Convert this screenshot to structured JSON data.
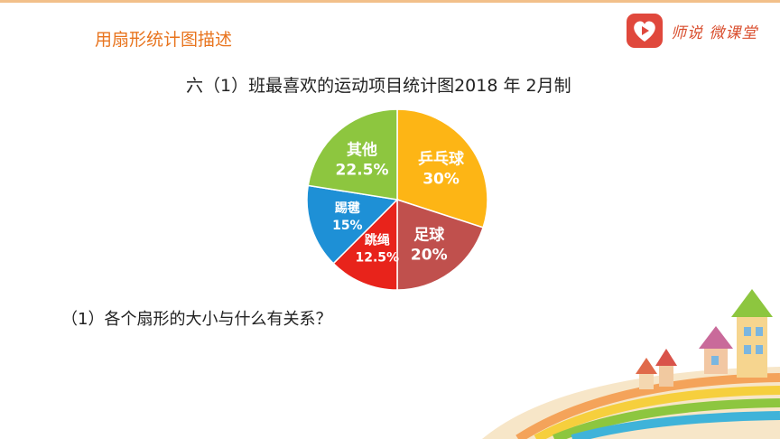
{
  "header": {
    "section_title": "用扇形统计图描述",
    "brand_name": "师说 微课堂",
    "brand_icon": "play-heart-icon"
  },
  "chart_title": "六（1）班最喜欢的运动项目统计图2018 年 2月制",
  "question": "（1）各个扇形的大小与什么有关系？",
  "chart_data": {
    "type": "pie",
    "title": "六（1）班最喜欢的运动项目统计图2018 年 2月制",
    "slices": [
      {
        "label": "乒乓球",
        "value": 30,
        "value_label": "30%",
        "color": "#fdb515"
      },
      {
        "label": "足球",
        "value": 20,
        "value_label": "20%",
        "color": "#c0504d"
      },
      {
        "label": "跳绳",
        "value": 12.5,
        "value_label": "12.5%",
        "color": "#e8231b"
      },
      {
        "label": "踢毽",
        "value": 15,
        "value_label": "15%",
        "color": "#1e90d6"
      },
      {
        "label": "其他",
        "value": 22.5,
        "value_label": "22.5%",
        "color": "#8dc63f"
      }
    ],
    "start": "12 o'clock",
    "direction": "clockwise",
    "legend": "none"
  },
  "colors": {
    "accent": "#e8741e",
    "brand": "#d94e2e"
  }
}
